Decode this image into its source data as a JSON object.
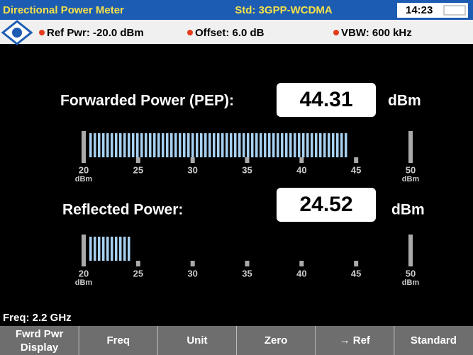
{
  "header": {
    "title": "Directional Power Meter",
    "standard": "Std: 3GPP-WCDMA",
    "time": "14:23"
  },
  "status": {
    "ref_pwr": "Ref Pwr: -20.0 dBm",
    "offset": "Offset: 6.0 dB",
    "vbw": "VBW: 600 kHz"
  },
  "forward": {
    "label": "Forwarded Power (PEP):",
    "value": 44.31,
    "unit": "dBm",
    "ticks": [
      20,
      25,
      30,
      35,
      40,
      45,
      50
    ],
    "scale_unit": "dBm"
  },
  "reflected": {
    "label": "Reflected Power:",
    "value": 24.52,
    "unit": "dBm",
    "ticks": [
      20,
      25,
      30,
      35,
      40,
      45,
      50
    ],
    "scale_unit": "dBm"
  },
  "footer": {
    "freq": "Freq: 2.2 GHz"
  },
  "softkeys": [
    "Fwrd Pwr Display",
    "Freq",
    "Unit",
    "Zero",
    "→ Ref",
    "Standard"
  ]
}
